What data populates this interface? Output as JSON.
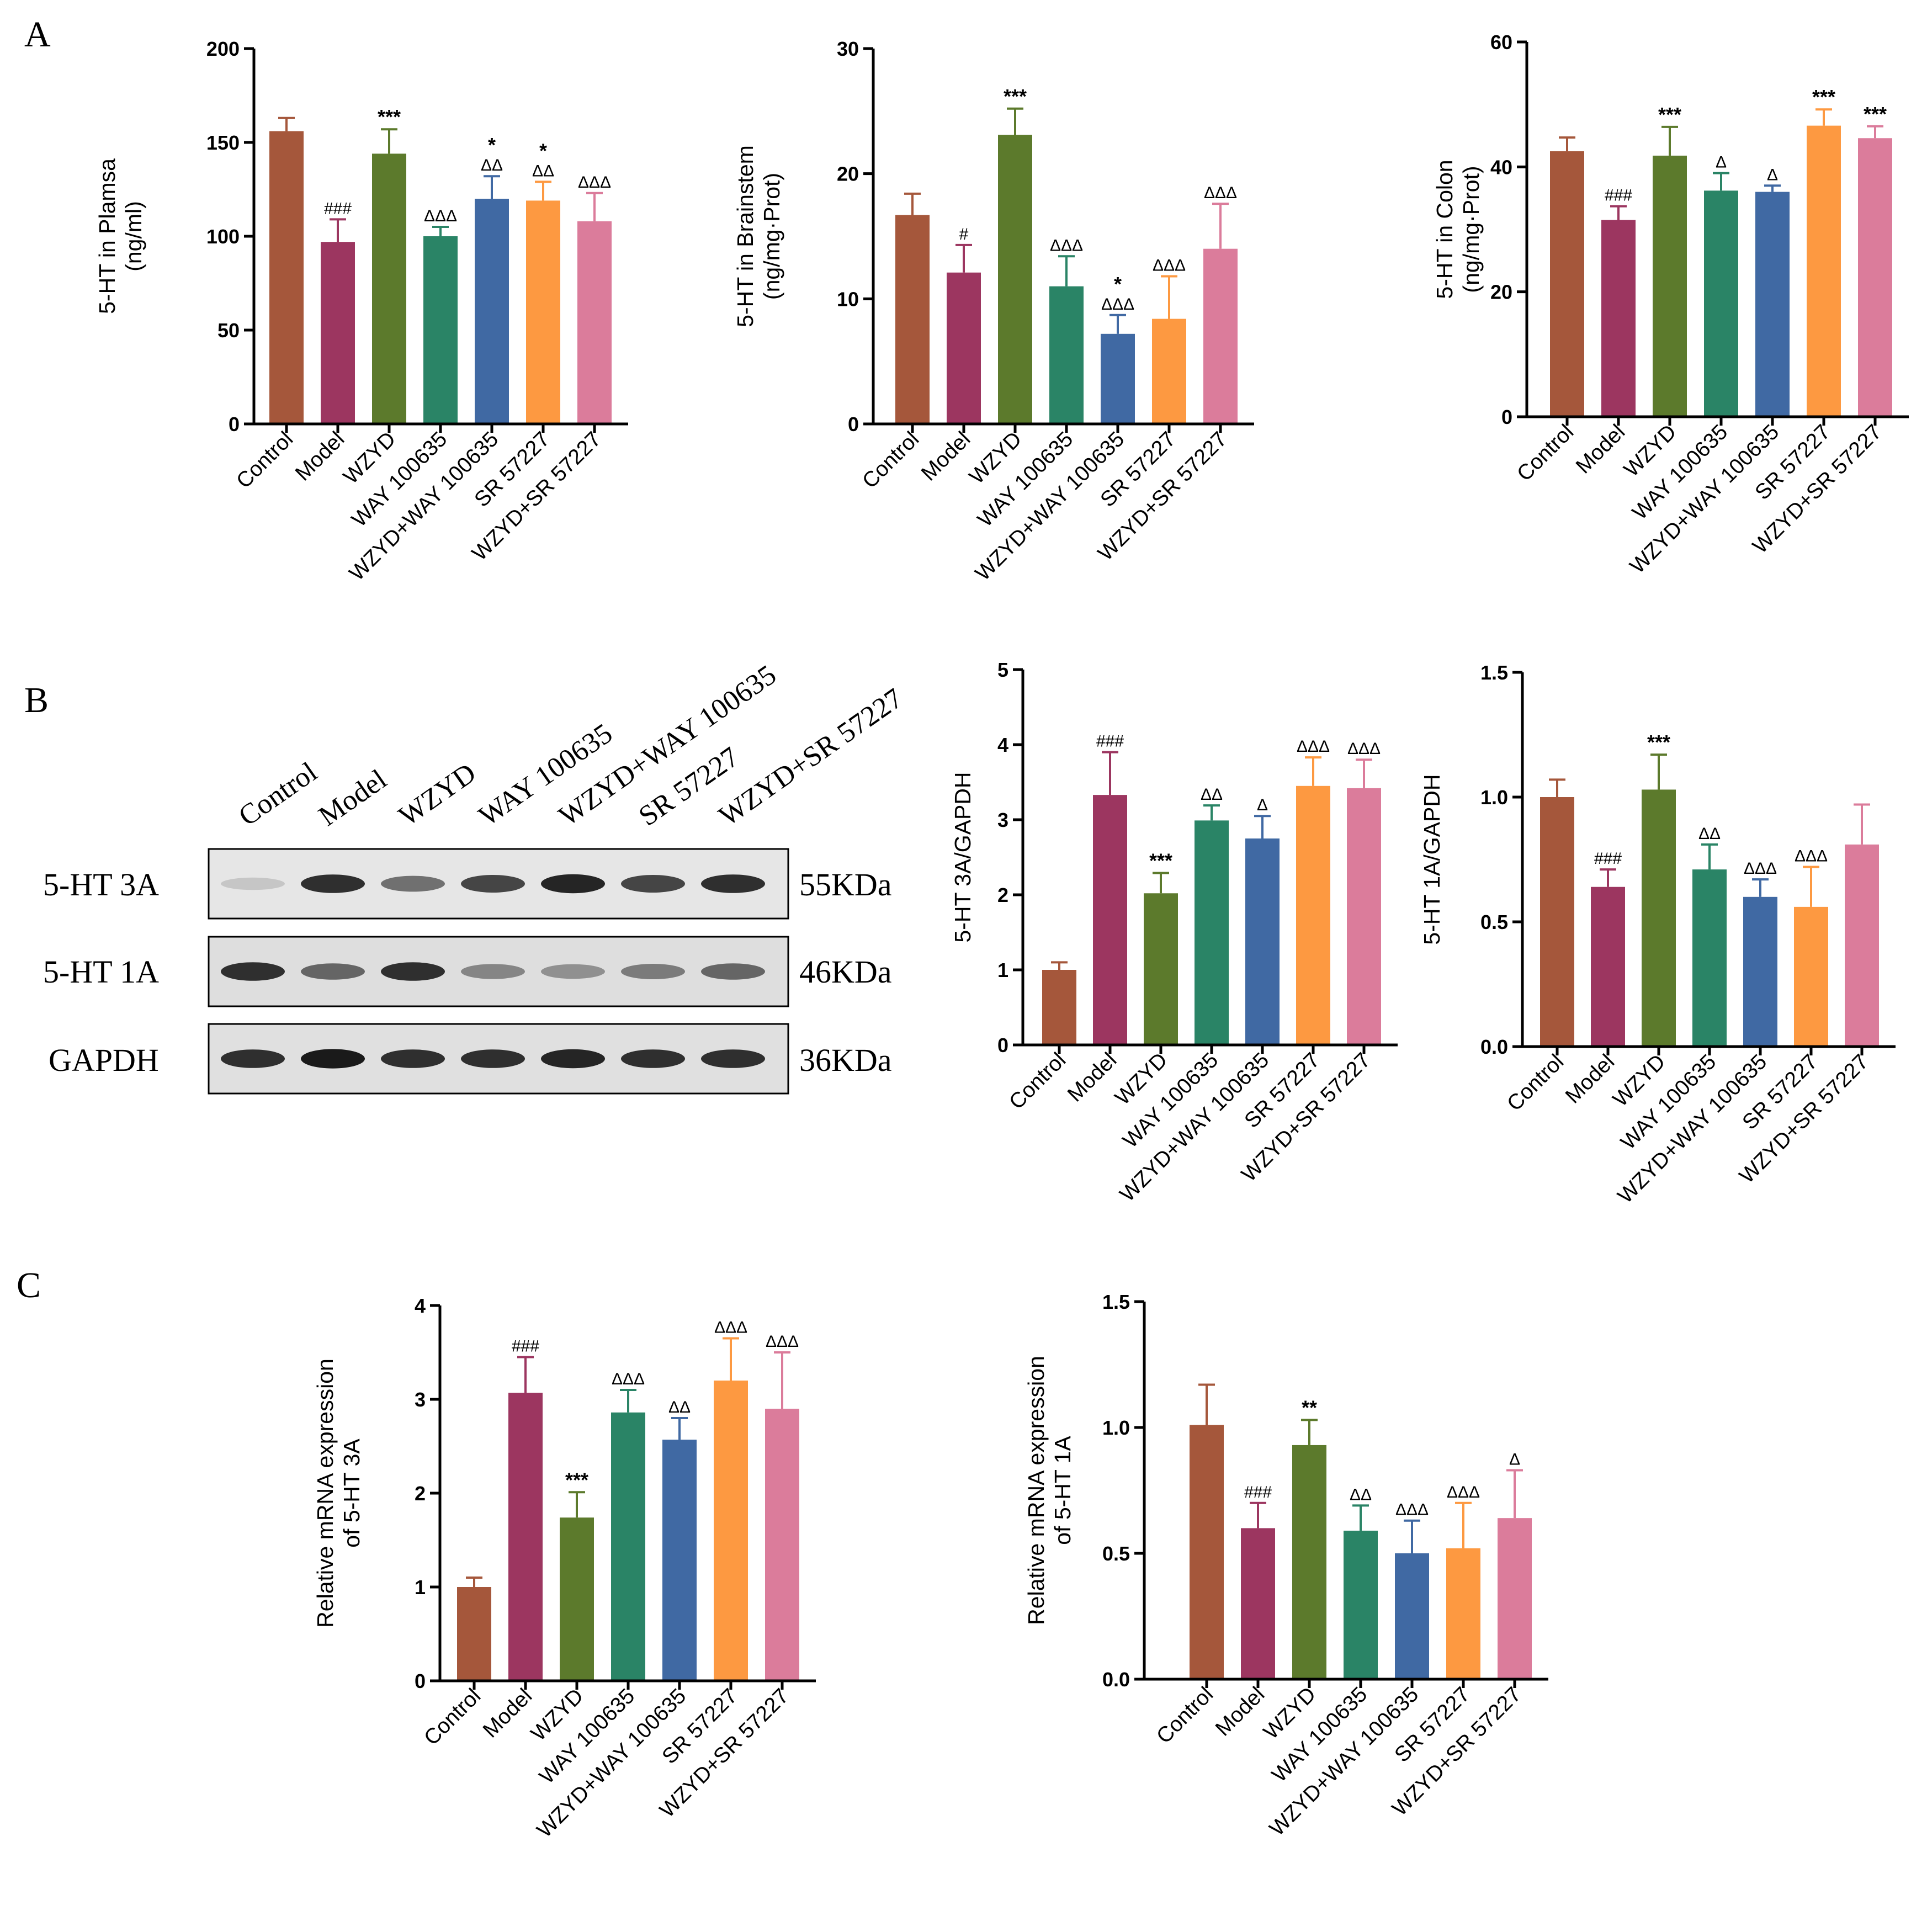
{
  "panels": {
    "a": "A",
    "b": "B",
    "c": "C"
  },
  "colors": [
    "#a5573b",
    "#9c3660",
    "#5c7a2c",
    "#2a8466",
    "#4069a3",
    "#fd9941",
    "#db7c9b"
  ],
  "blot": {
    "lanes": [
      "Control",
      "Model",
      "WZYD",
      "WAY 100635",
      "WZYD+WAY 100635",
      "SR 57227",
      "WZYD+SR 57227"
    ],
    "rows": [
      {
        "label": "5-HT 3A",
        "weight": "55KDa",
        "intensity": [
          0.15,
          0.85,
          0.55,
          0.75,
          0.9,
          0.75,
          0.85
        ]
      },
      {
        "label": "5-HT 1A",
        "weight": "46KDa",
        "intensity": [
          0.85,
          0.6,
          0.85,
          0.45,
          0.4,
          0.5,
          0.6
        ]
      },
      {
        "label": "GAPDH",
        "weight": "36KDa",
        "intensity": [
          0.85,
          0.95,
          0.85,
          0.85,
          0.9,
          0.85,
          0.85
        ]
      }
    ]
  },
  "chart_data": [
    {
      "id": "a1",
      "type": "bar",
      "categories": [
        "Control",
        "Model",
        "WZYD",
        "WAY 100635",
        "WZYD+WAY 100635",
        "SR 57227",
        "WZYD+SR 57227"
      ],
      "values": [
        156,
        97,
        144,
        100,
        120,
        119,
        108
      ],
      "errors": [
        7,
        12,
        13,
        5,
        12,
        10,
        15
      ],
      "ylabel": [
        "5-HT in Plamsa",
        "(ng/ml)"
      ],
      "ylim": [
        0,
        200
      ],
      "yticks": [
        "0",
        "50",
        "100",
        "150",
        "200"
      ],
      "annotations": [
        {
          "bar": 1,
          "lines": [
            "###"
          ]
        },
        {
          "bar": 2,
          "lines": [
            "***"
          ]
        },
        {
          "bar": 3,
          "lines": [
            "ΔΔΔ"
          ]
        },
        {
          "bar": 4,
          "lines": [
            "*",
            "ΔΔ"
          ]
        },
        {
          "bar": 5,
          "lines": [
            "*",
            "ΔΔ"
          ]
        },
        {
          "bar": 6,
          "lines": [
            "ΔΔΔ"
          ]
        }
      ]
    },
    {
      "id": "a2",
      "type": "bar",
      "categories": [
        "Control",
        "Model",
        "WZYD",
        "WAY 100635",
        "WZYD+WAY 100635",
        "SR 57227",
        "WZYD+SR 57227"
      ],
      "values": [
        16.7,
        12.1,
        23.1,
        11.0,
        7.2,
        8.4,
        14.0
      ],
      "errors": [
        1.7,
        2.2,
        2.1,
        2.4,
        1.5,
        3.4,
        3.6
      ],
      "ylabel": [
        "5-HT in Brainstem",
        "(ng/mg·Prot)"
      ],
      "ylim": [
        0,
        30
      ],
      "yticks": [
        "0",
        "10",
        "20",
        "30"
      ],
      "annotations": [
        {
          "bar": 1,
          "lines": [
            "#"
          ]
        },
        {
          "bar": 2,
          "lines": [
            "***"
          ]
        },
        {
          "bar": 3,
          "lines": [
            "ΔΔΔ"
          ]
        },
        {
          "bar": 4,
          "lines": [
            "*",
            "ΔΔΔ"
          ]
        },
        {
          "bar": 5,
          "lines": [
            "ΔΔΔ"
          ]
        },
        {
          "bar": 6,
          "lines": [
            "ΔΔΔ"
          ]
        }
      ]
    },
    {
      "id": "a3",
      "type": "bar",
      "categories": [
        "Control",
        "Model",
        "WZYD",
        "WAY 100635",
        "WZYD+WAY 100635",
        "SR 57227",
        "WZYD+SR 57227"
      ],
      "values": [
        42.5,
        31.5,
        41.8,
        36.2,
        36.0,
        46.6,
        44.6
      ],
      "errors": [
        2.2,
        2.2,
        4.6,
        2.8,
        1.0,
        2.6,
        1.9
      ],
      "ylabel": [
        "5-HT in Colon",
        "(ng/mg·Prot)"
      ],
      "ylim": [
        0,
        60
      ],
      "yticks": [
        "0",
        "20",
        "40",
        "60"
      ],
      "annotations": [
        {
          "bar": 1,
          "lines": [
            "###"
          ]
        },
        {
          "bar": 2,
          "lines": [
            "***"
          ]
        },
        {
          "bar": 3,
          "lines": [
            "Δ"
          ]
        },
        {
          "bar": 4,
          "lines": [
            "Δ"
          ]
        },
        {
          "bar": 5,
          "lines": [
            "***"
          ]
        },
        {
          "bar": 6,
          "lines": [
            "***"
          ]
        }
      ]
    },
    {
      "id": "b1",
      "type": "bar",
      "categories": [
        "Control",
        "Model",
        "WZYD",
        "WAY 100635",
        "WZYD+WAY 100635",
        "SR 57227",
        "WZYD+SR 57227"
      ],
      "values": [
        1.0,
        3.33,
        2.02,
        2.99,
        2.75,
        3.45,
        3.42
      ],
      "errors": [
        0.1,
        0.57,
        0.27,
        0.2,
        0.3,
        0.38,
        0.38
      ],
      "ylabel": [
        "5-HT 3A/GAPDH"
      ],
      "ylim": [
        0,
        5
      ],
      "yticks": [
        "0",
        "1",
        "2",
        "3",
        "4",
        "5"
      ],
      "annotations": [
        {
          "bar": 1,
          "lines": [
            "###"
          ]
        },
        {
          "bar": 2,
          "lines": [
            "***"
          ]
        },
        {
          "bar": 3,
          "lines": [
            "ΔΔ"
          ]
        },
        {
          "bar": 4,
          "lines": [
            "Δ"
          ]
        },
        {
          "bar": 5,
          "lines": [
            "ΔΔΔ"
          ]
        },
        {
          "bar": 6,
          "lines": [
            "ΔΔΔ"
          ]
        }
      ]
    },
    {
      "id": "b2",
      "type": "bar",
      "categories": [
        "Control",
        "Model",
        "WZYD",
        "WAY 100635",
        "WZYD+WAY 100635",
        "SR 57227",
        "WZYD+SR 57227"
      ],
      "values": [
        1.0,
        0.64,
        1.03,
        0.71,
        0.6,
        0.56,
        0.81
      ],
      "errors": [
        0.07,
        0.07,
        0.14,
        0.1,
        0.07,
        0.16,
        0.16
      ],
      "ylabel": [
        "5-HT 1A/GAPDH"
      ],
      "ylim": [
        0,
        1.5
      ],
      "yticks": [
        "0.0",
        "0.5",
        "1.0",
        "1.5"
      ],
      "annotations": [
        {
          "bar": 1,
          "lines": [
            "###"
          ]
        },
        {
          "bar": 2,
          "lines": [
            "***"
          ]
        },
        {
          "bar": 3,
          "lines": [
            "ΔΔ"
          ]
        },
        {
          "bar": 4,
          "lines": [
            "ΔΔΔ"
          ]
        },
        {
          "bar": 5,
          "lines": [
            "ΔΔΔ"
          ]
        }
      ]
    },
    {
      "id": "c1",
      "type": "bar",
      "categories": [
        "Control",
        "Model",
        "WZYD",
        "WAY 100635",
        "WZYD+WAY 100635",
        "SR 57227",
        "WZYD+SR 57227"
      ],
      "values": [
        1.0,
        3.07,
        1.74,
        2.86,
        2.57,
        3.2,
        2.9
      ],
      "errors": [
        0.1,
        0.38,
        0.27,
        0.24,
        0.23,
        0.45,
        0.6
      ],
      "ylabel": [
        "Relative mRNA expression",
        "of 5-HT 3A"
      ],
      "ylim": [
        0,
        4
      ],
      "yticks": [
        "0",
        "1",
        "2",
        "3",
        "4"
      ],
      "annotations": [
        {
          "bar": 1,
          "lines": [
            "###"
          ]
        },
        {
          "bar": 2,
          "lines": [
            "***"
          ]
        },
        {
          "bar": 3,
          "lines": [
            "ΔΔΔ"
          ]
        },
        {
          "bar": 4,
          "lines": [
            "ΔΔ"
          ]
        },
        {
          "bar": 5,
          "lines": [
            "ΔΔΔ"
          ]
        },
        {
          "bar": 6,
          "lines": [
            "ΔΔΔ"
          ]
        }
      ]
    },
    {
      "id": "c2",
      "type": "bar",
      "categories": [
        "Control",
        "Model",
        "WZYD",
        "WAY 100635",
        "WZYD+WAY 100635",
        "SR 57227",
        "WZYD+SR 57227"
      ],
      "values": [
        1.01,
        0.6,
        0.93,
        0.59,
        0.5,
        0.52,
        0.64
      ],
      "errors": [
        0.16,
        0.1,
        0.1,
        0.1,
        0.13,
        0.18,
        0.19
      ],
      "ylabel": [
        "Relative mRNA expression",
        "of 5-HT 1A"
      ],
      "ylim": [
        0,
        1.5
      ],
      "yticks": [
        "0.0",
        "0.5",
        "1.0",
        "1.5"
      ],
      "annotations": [
        {
          "bar": 1,
          "lines": [
            "###"
          ]
        },
        {
          "bar": 2,
          "lines": [
            "**"
          ]
        },
        {
          "bar": 3,
          "lines": [
            "ΔΔ"
          ]
        },
        {
          "bar": 4,
          "lines": [
            "ΔΔΔ"
          ]
        },
        {
          "bar": 5,
          "lines": [
            "ΔΔΔ"
          ]
        },
        {
          "bar": 6,
          "lines": [
            "Δ"
          ]
        }
      ]
    }
  ]
}
